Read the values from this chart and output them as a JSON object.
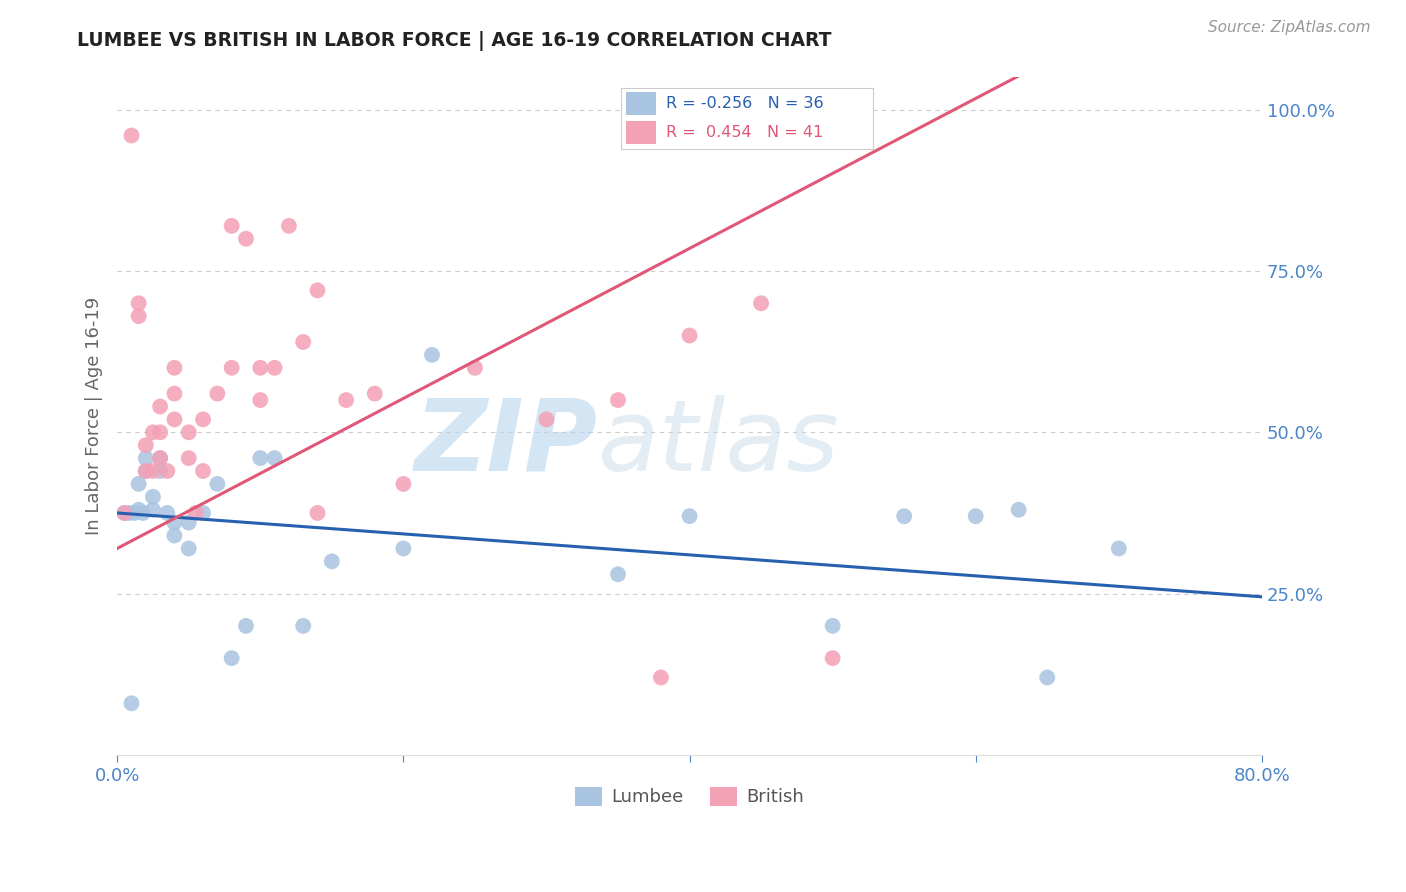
{
  "title": "LUMBEE VS BRITISH IN LABOR FORCE | AGE 16-19 CORRELATION CHART",
  "source": "Source: ZipAtlas.com",
  "ylabel": "In Labor Force | Age 16-19",
  "xmin": 0.0,
  "xmax": 0.8,
  "ymin": 0.0,
  "ymax": 1.05,
  "yticks": [
    0.25,
    0.5,
    0.75,
    1.0
  ],
  "ytick_labels": [
    "25.0%",
    "50.0%",
    "75.0%",
    "100.0%"
  ],
  "xticks": [
    0.0,
    0.2,
    0.4,
    0.6,
    0.8
  ],
  "xtick_labels": [
    "0.0%",
    "",
    "",
    "",
    "80.0%"
  ],
  "lumbee_R": -0.256,
  "lumbee_N": 36,
  "british_R": 0.454,
  "british_N": 41,
  "lumbee_color": "#a8c4e0",
  "british_color": "#f4a0b5",
  "lumbee_line_color": "#2860b0",
  "british_line_color": "#e05878",
  "lumbee_x": [
    0.005,
    0.008,
    0.01,
    0.012,
    0.015,
    0.015,
    0.018,
    0.02,
    0.02,
    0.025,
    0.025,
    0.03,
    0.03,
    0.035,
    0.04,
    0.04,
    0.05,
    0.05,
    0.06,
    0.07,
    0.08,
    0.09,
    0.1,
    0.11,
    0.13,
    0.15,
    0.2,
    0.22,
    0.35,
    0.4,
    0.5,
    0.55,
    0.6,
    0.63,
    0.65,
    0.7
  ],
  "lumbee_y": [
    0.375,
    0.375,
    0.08,
    0.375,
    0.38,
    0.42,
    0.375,
    0.44,
    0.46,
    0.38,
    0.4,
    0.44,
    0.46,
    0.375,
    0.34,
    0.36,
    0.32,
    0.36,
    0.375,
    0.42,
    0.15,
    0.2,
    0.46,
    0.46,
    0.2,
    0.3,
    0.32,
    0.62,
    0.28,
    0.37,
    0.2,
    0.37,
    0.37,
    0.38,
    0.12,
    0.32
  ],
  "british_x": [
    0.005,
    0.01,
    0.015,
    0.015,
    0.02,
    0.02,
    0.025,
    0.025,
    0.03,
    0.03,
    0.03,
    0.035,
    0.04,
    0.04,
    0.04,
    0.05,
    0.05,
    0.055,
    0.06,
    0.06,
    0.07,
    0.08,
    0.08,
    0.09,
    0.1,
    0.1,
    0.11,
    0.12,
    0.13,
    0.14,
    0.16,
    0.18,
    0.2,
    0.25,
    0.3,
    0.35,
    0.38,
    0.4,
    0.45,
    0.5,
    0.14
  ],
  "british_y": [
    0.375,
    0.96,
    0.68,
    0.7,
    0.44,
    0.48,
    0.44,
    0.5,
    0.46,
    0.5,
    0.54,
    0.44,
    0.52,
    0.56,
    0.6,
    0.46,
    0.5,
    0.375,
    0.44,
    0.52,
    0.56,
    0.6,
    0.82,
    0.8,
    0.55,
    0.6,
    0.6,
    0.82,
    0.64,
    0.72,
    0.55,
    0.56,
    0.42,
    0.6,
    0.52,
    0.55,
    0.12,
    0.65,
    0.7,
    0.15,
    0.375
  ],
  "watermark_zip": "ZIP",
  "watermark_atlas": "atlas",
  "background_color": "#ffffff",
  "grid_color": "#cccccc"
}
